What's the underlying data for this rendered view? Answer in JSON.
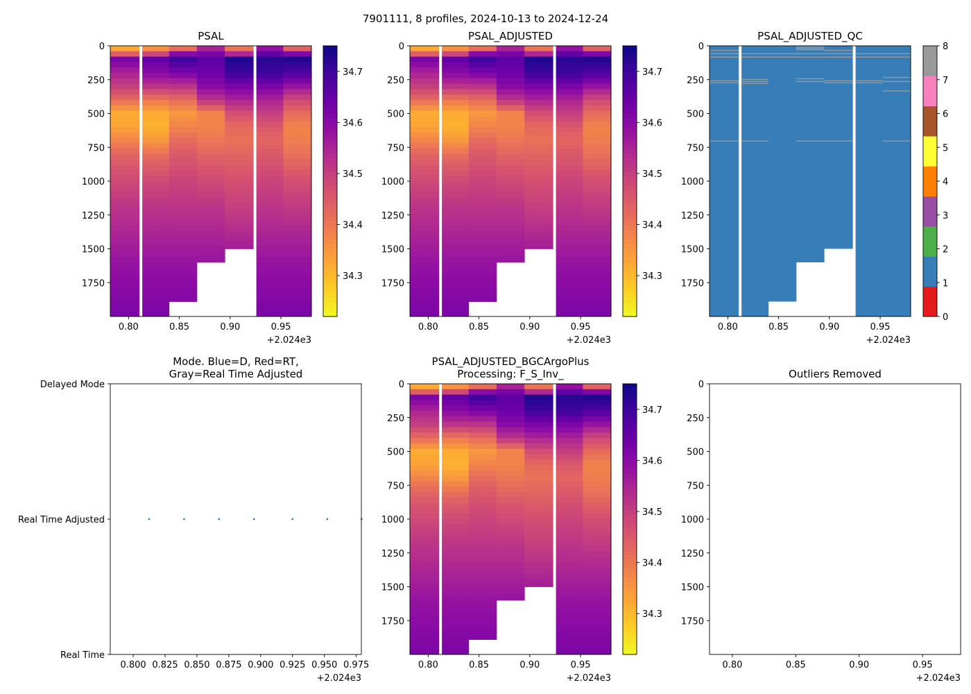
{
  "figure": {
    "suptitle": "7901111, 8 profiles, 2024-10-13 to 2024-12-24"
  },
  "colors": {
    "plasma": [
      "#0d0887",
      "#41049d",
      "#6a00a8",
      "#8f0da4",
      "#b12a90",
      "#cc4778",
      "#e16462",
      "#f2844b",
      "#fca636",
      "#fcce25",
      "#f0f921"
    ],
    "qc_flags": [
      "#e41a1c",
      "#377eb8",
      "#4daf4a",
      "#984ea3",
      "#ff7f00",
      "#ffff33",
      "#a65628",
      "#f781bf",
      "#999999"
    ],
    "mode_dot": "#1f77b4"
  },
  "chart_data": [
    {
      "id": "psal",
      "type": "heatmap",
      "title": "PSAL",
      "x_offset_label": "+2.024e3",
      "xlim": [
        0.782,
        0.98
      ],
      "x_ticks": [
        "0.80",
        "0.85",
        "0.90",
        "0.95"
      ],
      "ylim": [
        0,
        2000
      ],
      "y_inverted": true,
      "y_ticks": [
        "0",
        "250",
        "500",
        "750",
        "1000",
        "1250",
        "1500",
        "1750"
      ],
      "colorbar": {
        "cmap": "plasma_r",
        "vmin": 34.22,
        "vmax": 34.75,
        "ticks": [
          "34.3",
          "34.4",
          "34.5",
          "34.6",
          "34.7"
        ]
      }
    },
    {
      "id": "psal_adj",
      "type": "heatmap",
      "title": "PSAL_ADJUSTED",
      "x_offset_label": "+2.024e3",
      "xlim": [
        0.782,
        0.98
      ],
      "x_ticks": [
        "0.80",
        "0.85",
        "0.90",
        "0.95"
      ],
      "ylim": [
        0,
        2000
      ],
      "y_inverted": true,
      "y_ticks": [
        "0",
        "250",
        "500",
        "750",
        "1000",
        "1250",
        "1500",
        "1750"
      ],
      "colorbar": {
        "cmap": "plasma_r",
        "vmin": 34.22,
        "vmax": 34.75,
        "ticks": [
          "34.3",
          "34.4",
          "34.5",
          "34.6",
          "34.7"
        ]
      }
    },
    {
      "id": "psal_qc",
      "type": "heatmap",
      "title": "PSAL_ADJUSTED_QC",
      "x_offset_label": "+2.024e3",
      "xlim": [
        0.782,
        0.98
      ],
      "x_ticks": [
        "0.80",
        "0.85",
        "0.90",
        "0.95"
      ],
      "ylim": [
        0,
        2000
      ],
      "y_inverted": true,
      "y_ticks": [
        "0",
        "250",
        "500",
        "750",
        "1000",
        "1250",
        "1500",
        "1750"
      ],
      "dominant_flag": 1,
      "colorbar": {
        "cmap": "qc_flags",
        "vmin": 0,
        "vmax": 8,
        "ticks": [
          "0",
          "1",
          "2",
          "3",
          "4",
          "5",
          "6",
          "7",
          "8"
        ]
      }
    },
    {
      "id": "mode",
      "type": "scatter",
      "title_lines": [
        "Mode. Blue=D, Red=RT,",
        "Gray=Real Time Adjusted"
      ],
      "x_offset_label": "+2.024e3",
      "xlim": [
        0.782,
        0.979
      ],
      "x_ticks": [
        "0.800",
        "0.825",
        "0.850",
        "0.875",
        "0.900",
        "0.925",
        "0.950",
        "0.975"
      ],
      "y_categories": [
        "Real Time",
        "Real Time Adjusted",
        "Delayed Mode"
      ],
      "points": [
        {
          "x": 0.8125,
          "y": "Real Time Adjusted"
        },
        {
          "x": 0.8399,
          "y": "Real Time Adjusted"
        },
        {
          "x": 0.8673,
          "y": "Real Time Adjusted"
        },
        {
          "x": 0.8948,
          "y": "Real Time Adjusted"
        },
        {
          "x": 0.9249,
          "y": "Real Time Adjusted"
        },
        {
          "x": 0.9523,
          "y": "Real Time Adjusted"
        },
        {
          "x": 0.9792,
          "y": "Real Time Adjusted"
        }
      ]
    },
    {
      "id": "bgc",
      "type": "heatmap",
      "title_lines": [
        "PSAL_ADJUSTED_BGCArgoPlus",
        "Processing: F_S_Inv_"
      ],
      "x_offset_label": "+2.024e3",
      "xlim": [
        0.782,
        0.98
      ],
      "x_ticks": [
        "0.80",
        "0.85",
        "0.90",
        "0.95"
      ],
      "ylim": [
        0,
        2000
      ],
      "y_inverted": true,
      "y_ticks": [
        "0",
        "250",
        "500",
        "750",
        "1000",
        "1250",
        "1500",
        "1750"
      ],
      "colorbar": {
        "cmap": "plasma_r",
        "vmin": 34.22,
        "vmax": 34.75,
        "ticks": [
          "34.3",
          "34.4",
          "34.5",
          "34.6",
          "34.7"
        ]
      }
    },
    {
      "id": "outliers",
      "type": "scatter",
      "title": "Outliers Removed",
      "x_offset_label": "+2.024e3",
      "xlim": [
        0.782,
        0.98
      ],
      "x_ticks": [
        "0.80",
        "0.85",
        "0.90",
        "0.95"
      ],
      "ylim": [
        0,
        2000
      ],
      "y_inverted": true,
      "y_ticks": [
        "0",
        "250",
        "500",
        "750",
        "1000",
        "1250",
        "1500",
        "1750"
      ],
      "points": []
    }
  ],
  "profiles": [
    {
      "x0": 0.782,
      "x1": 0.8105,
      "max_depth": 2000,
      "salinity": [
        [
          0,
          34.3
        ],
        [
          40,
          34.35
        ],
        [
          100,
          34.62
        ],
        [
          200,
          34.55
        ],
        [
          300,
          34.5
        ],
        [
          400,
          34.42
        ],
        [
          500,
          34.32
        ],
        [
          600,
          34.33
        ],
        [
          700,
          34.38
        ],
        [
          800,
          34.43
        ],
        [
          900,
          34.46
        ],
        [
          1000,
          34.48
        ],
        [
          1200,
          34.52
        ],
        [
          1400,
          34.55
        ],
        [
          1600,
          34.58
        ],
        [
          1800,
          34.6
        ],
        [
          2000,
          34.62
        ]
      ]
    },
    {
      "x0": 0.8135,
      "x1": 0.8399,
      "max_depth": 2000,
      "salinity": [
        [
          0,
          34.32
        ],
        [
          40,
          34.4
        ],
        [
          100,
          34.65
        ],
        [
          200,
          34.6
        ],
        [
          300,
          34.52
        ],
        [
          400,
          34.4
        ],
        [
          500,
          34.32
        ],
        [
          600,
          34.31
        ],
        [
          700,
          34.35
        ],
        [
          800,
          34.41
        ],
        [
          900,
          34.45
        ],
        [
          1000,
          34.48
        ],
        [
          1200,
          34.52
        ],
        [
          1400,
          34.55
        ],
        [
          1600,
          34.58
        ],
        [
          1800,
          34.6
        ],
        [
          2000,
          34.62
        ]
      ]
    },
    {
      "x0": 0.8399,
      "x1": 0.8673,
      "max_depth": 1890,
      "salinity": [
        [
          0,
          34.28
        ],
        [
          40,
          34.55
        ],
        [
          100,
          34.7
        ],
        [
          200,
          34.62
        ],
        [
          300,
          34.52
        ],
        [
          400,
          34.42
        ],
        [
          500,
          34.35
        ],
        [
          600,
          34.38
        ],
        [
          700,
          34.42
        ],
        [
          800,
          34.45
        ],
        [
          900,
          34.47
        ],
        [
          1000,
          34.49
        ],
        [
          1200,
          34.52
        ],
        [
          1400,
          34.55
        ],
        [
          1600,
          34.58
        ],
        [
          1800,
          34.6
        ],
        [
          2000,
          34.62
        ]
      ]
    },
    {
      "x0": 0.8673,
      "x1": 0.8948,
      "max_depth": 1600,
      "salinity": [
        [
          0,
          34.5
        ],
        [
          40,
          34.6
        ],
        [
          100,
          34.66
        ],
        [
          200,
          34.64
        ],
        [
          300,
          34.6
        ],
        [
          400,
          34.52
        ],
        [
          500,
          34.38
        ],
        [
          600,
          34.38
        ],
        [
          700,
          34.4
        ],
        [
          800,
          34.43
        ],
        [
          900,
          34.46
        ],
        [
          1000,
          34.48
        ],
        [
          1200,
          34.52
        ],
        [
          1400,
          34.55
        ],
        [
          1600,
          34.58
        ],
        [
          1800,
          34.6
        ],
        [
          2000,
          34.62
        ]
      ]
    },
    {
      "x0": 0.8948,
      "x1": 0.9228,
      "max_depth": 1500,
      "salinity": [
        [
          0,
          34.36
        ],
        [
          40,
          34.45
        ],
        [
          100,
          34.73
        ],
        [
          200,
          34.7
        ],
        [
          300,
          34.62
        ],
        [
          400,
          34.55
        ],
        [
          500,
          34.47
        ],
        [
          600,
          34.42
        ],
        [
          700,
          34.41
        ],
        [
          800,
          34.43
        ],
        [
          900,
          34.45
        ],
        [
          1000,
          34.47
        ],
        [
          1200,
          34.5
        ],
        [
          1400,
          34.54
        ],
        [
          1600,
          34.58
        ],
        [
          1800,
          34.6
        ],
        [
          2000,
          34.62
        ]
      ]
    },
    {
      "x0": 0.9258,
      "x1": 0.9523,
      "max_depth": 2000,
      "salinity": [
        [
          0,
          34.55
        ],
        [
          40,
          34.62
        ],
        [
          100,
          34.72
        ],
        [
          200,
          34.7
        ],
        [
          300,
          34.62
        ],
        [
          400,
          34.55
        ],
        [
          500,
          34.5
        ],
        [
          600,
          34.45
        ],
        [
          700,
          34.43
        ],
        [
          800,
          34.45
        ],
        [
          900,
          34.47
        ],
        [
          1000,
          34.49
        ],
        [
          1200,
          34.52
        ],
        [
          1400,
          34.55
        ],
        [
          1600,
          34.58
        ],
        [
          1800,
          34.6
        ],
        [
          2000,
          34.62
        ]
      ]
    },
    {
      "x0": 0.9523,
      "x1": 0.98,
      "max_depth": 2000,
      "salinity": [
        [
          0,
          34.32
        ],
        [
          40,
          34.55
        ],
        [
          100,
          34.73
        ],
        [
          200,
          34.68
        ],
        [
          300,
          34.58
        ],
        [
          400,
          34.48
        ],
        [
          500,
          34.42
        ],
        [
          600,
          34.38
        ],
        [
          700,
          34.39
        ],
        [
          800,
          34.41
        ],
        [
          900,
          34.44
        ],
        [
          1000,
          34.47
        ],
        [
          1200,
          34.51
        ],
        [
          1400,
          34.55
        ],
        [
          1600,
          34.58
        ],
        [
          1800,
          34.6
        ],
        [
          2000,
          34.62
        ]
      ]
    }
  ],
  "qc_overlays": [
    {
      "flag": 8,
      "x0": 0.782,
      "x1": 0.8105,
      "depths": [
        30,
        55,
        80
      ]
    },
    {
      "flag": 8,
      "x0": 0.8135,
      "x1": 0.9228,
      "depths": [
        55,
        80
      ]
    },
    {
      "flag": 8,
      "x0": 0.8948,
      "x1": 0.9228,
      "depths": [
        30
      ]
    },
    {
      "flag": 8,
      "x0": 0.8673,
      "x1": 0.8948,
      "depths": [
        5,
        15,
        25
      ]
    },
    {
      "flag": 8,
      "x0": 0.9258,
      "x1": 0.98,
      "depths": [
        55,
        80
      ]
    },
    {
      "flag": 8,
      "x0": 0.782,
      "x1": 0.8105,
      "depths": [
        255,
        270
      ]
    },
    {
      "flag": 8,
      "x0": 0.8135,
      "x1": 0.8399,
      "depths": [
        245,
        260,
        275
      ]
    },
    {
      "flag": 8,
      "x0": 0.8673,
      "x1": 0.8948,
      "depths": [
        240,
        260
      ]
    },
    {
      "flag": 8,
      "x0": 0.8948,
      "x1": 0.9228,
      "depths": [
        255,
        270
      ]
    },
    {
      "flag": 8,
      "x0": 0.9258,
      "x1": 0.9523,
      "depths": [
        255,
        270
      ]
    },
    {
      "flag": 8,
      "x0": 0.9523,
      "x1": 0.98,
      "depths": [
        230,
        260,
        330
      ]
    },
    {
      "flag": 8,
      "x0": 0.782,
      "x1": 0.8105,
      "depths": [
        700
      ]
    },
    {
      "flag": 8,
      "x0": 0.8135,
      "x1": 0.8399,
      "depths": [
        700
      ]
    },
    {
      "flag": 8,
      "x0": 0.8673,
      "x1": 0.9228,
      "depths": [
        700
      ]
    },
    {
      "flag": 8,
      "x0": 0.9523,
      "x1": 0.98,
      "depths": [
        700
      ]
    }
  ]
}
